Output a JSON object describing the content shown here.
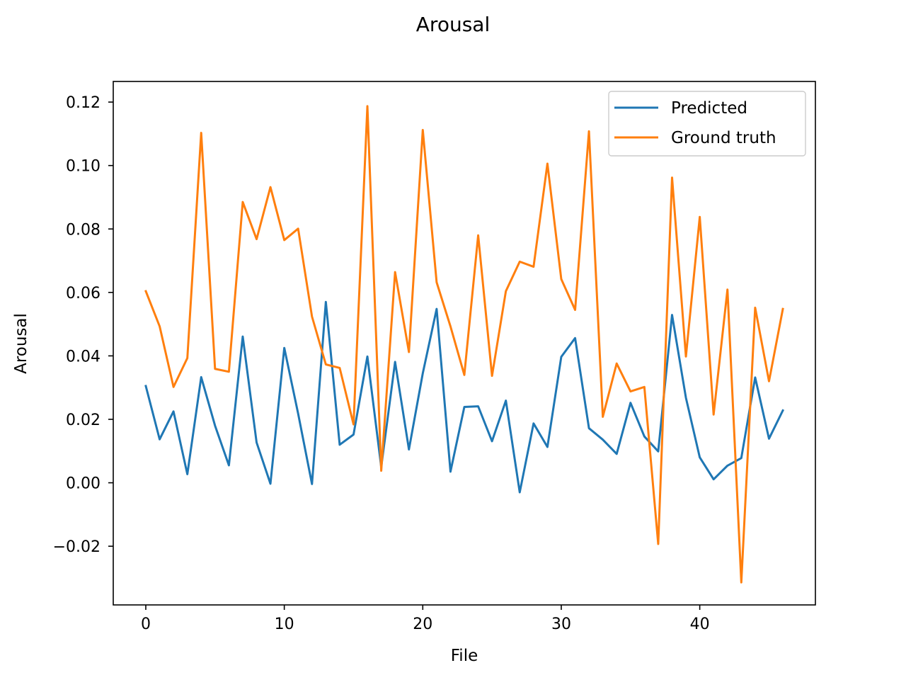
{
  "chart_data": {
    "type": "line",
    "title": "Arousal",
    "xlabel": "File",
    "ylabel": "Arousal",
    "xlim": [
      -2.35,
      48.35
    ],
    "ylim": [
      -0.0385,
      0.1265
    ],
    "xticks": [
      0,
      10,
      20,
      30,
      40
    ],
    "xtick_labels": [
      "0",
      "10",
      "20",
      "30",
      "40"
    ],
    "yticks": [
      -0.02,
      0.0,
      0.02,
      0.04,
      0.06,
      0.08,
      0.1,
      0.12
    ],
    "ytick_labels": [
      "−0.02",
      "0.00",
      "0.02",
      "0.04",
      "0.06",
      "0.08",
      "0.10",
      "0.12"
    ],
    "grid": false,
    "legend_position": "top-right",
    "x": [
      0,
      1,
      2,
      3,
      4,
      5,
      6,
      7,
      8,
      9,
      10,
      11,
      12,
      13,
      14,
      15,
      16,
      17,
      18,
      19,
      20,
      21,
      22,
      23,
      24,
      25,
      26,
      27,
      28,
      29,
      30,
      31,
      32,
      33,
      34,
      35,
      36,
      37,
      38,
      39,
      40,
      41,
      42,
      43,
      44,
      45,
      46
    ],
    "series": [
      {
        "name": "Predicted",
        "color": "#1f77b4",
        "values": [
          0.0305,
          0.0137,
          0.0225,
          0.0027,
          0.0333,
          0.018,
          0.0055,
          0.0461,
          0.0127,
          -0.0003,
          0.0425,
          0.0218,
          -0.0004,
          0.057,
          0.012,
          0.0152,
          0.0398,
          0.005,
          0.0381,
          0.0105,
          0.0345,
          0.0548,
          0.0035,
          0.0239,
          0.0241,
          0.0131,
          0.0259,
          -0.003,
          0.0187,
          0.0113,
          0.0397,
          0.0456,
          0.0172,
          0.0136,
          0.0091,
          0.0252,
          0.0146,
          0.0099,
          0.0529,
          0.0268,
          0.008,
          0.0011,
          0.0054,
          0.0078,
          0.0332,
          0.0139,
          0.0228
        ]
      },
      {
        "name": "Ground truth",
        "color": "#ff7f0e",
        "values": [
          0.0604,
          0.0493,
          0.0302,
          0.0393,
          0.1103,
          0.0359,
          0.035,
          0.0885,
          0.0768,
          0.0932,
          0.0765,
          0.0801,
          0.0524,
          0.0373,
          0.0362,
          0.0184,
          0.1187,
          0.0038,
          0.0664,
          0.0412,
          0.1112,
          0.0632,
          0.0493,
          0.034,
          0.078,
          0.0337,
          0.0604,
          0.0697,
          0.0681,
          0.1006,
          0.0642,
          0.0545,
          0.1108,
          0.0208,
          0.0376,
          0.0288,
          0.0302,
          -0.0193,
          0.0962,
          0.0398,
          0.0838,
          0.0215,
          0.0609,
          -0.0314,
          0.0552,
          0.032,
          0.0548
        ]
      }
    ]
  }
}
